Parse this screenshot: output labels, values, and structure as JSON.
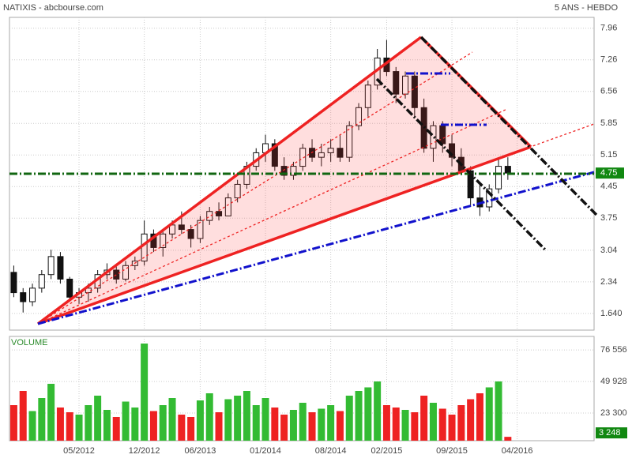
{
  "chart_data": [
    {
      "type": "candlestick",
      "title": "NATIXIS - abcbourse.com",
      "subtitle": "5 ANS - HEBDO",
      "x": [
        0,
        1,
        2,
        3,
        4,
        5,
        6,
        7,
        8,
        9,
        10,
        11,
        12,
        13,
        14,
        15,
        16,
        17,
        18,
        19,
        20,
        21,
        22,
        23,
        24,
        25,
        26,
        27,
        28,
        29,
        30,
        31,
        32,
        33,
        34,
        35,
        36,
        37,
        38,
        39,
        40,
        41,
        42,
        43,
        44,
        45,
        46,
        47,
        48,
        49,
        50,
        51,
        52,
        53
      ],
      "open": [
        2.55,
        2.1,
        1.9,
        2.2,
        2.5,
        2.9,
        2.4,
        2.0,
        2.1,
        2.2,
        2.5,
        2.6,
        2.4,
        2.7,
        2.8,
        3.4,
        3.1,
        3.4,
        3.6,
        3.5,
        3.3,
        3.7,
        3.9,
        3.8,
        4.2,
        4.5,
        4.9,
        5.2,
        5.4,
        4.9,
        4.7,
        4.9,
        5.3,
        5.1,
        5.2,
        5.3,
        5.1,
        5.8,
        6.2,
        6.7,
        7.3,
        7.0,
        6.5,
        6.9,
        6.2,
        5.3,
        5.8,
        5.4,
        5.1,
        4.8,
        4.2,
        4.0,
        4.4,
        4.9
      ],
      "high": [
        2.7,
        2.2,
        2.3,
        2.6,
        3.05,
        3.0,
        2.45,
        2.2,
        2.3,
        2.6,
        2.75,
        2.7,
        2.8,
        2.9,
        3.7,
        3.5,
        3.5,
        3.7,
        3.9,
        3.6,
        3.8,
        4.0,
        4.1,
        4.3,
        4.6,
        5.0,
        5.3,
        5.6,
        5.5,
        5.1,
        5.0,
        5.4,
        5.5,
        5.4,
        5.5,
        5.6,
        5.9,
        6.3,
        6.8,
        7.5,
        7.7,
        7.1,
        7.0,
        7.0,
        6.4,
        5.9,
        5.9,
        5.6,
        5.3,
        4.9,
        4.5,
        4.5,
        5.1,
        5.1
      ],
      "low": [
        2.0,
        1.66,
        1.8,
        2.1,
        2.4,
        2.3,
        1.9,
        1.85,
        1.9,
        2.1,
        2.4,
        2.3,
        2.35,
        2.6,
        2.7,
        3.0,
        2.9,
        3.3,
        3.4,
        3.1,
        3.2,
        3.6,
        3.7,
        3.8,
        4.1,
        4.4,
        4.8,
        5.0,
        4.8,
        4.6,
        4.6,
        4.8,
        5.0,
        4.9,
        5.0,
        5.0,
        5.0,
        5.7,
        6.0,
        6.6,
        6.9,
        6.3,
        6.4,
        6.0,
        5.2,
        5.0,
        5.2,
        4.9,
        4.7,
        4.0,
        3.8,
        3.9,
        4.3,
        4.6
      ],
      "close": [
        2.1,
        1.9,
        2.2,
        2.5,
        2.9,
        2.4,
        2.0,
        2.1,
        2.2,
        2.5,
        2.6,
        2.4,
        2.7,
        2.8,
        3.4,
        3.1,
        3.4,
        3.6,
        3.5,
        3.3,
        3.7,
        3.9,
        3.8,
        4.2,
        4.5,
        4.9,
        5.2,
        5.4,
        4.9,
        4.7,
        4.9,
        5.3,
        5.1,
        5.2,
        5.3,
        5.1,
        5.8,
        6.2,
        6.7,
        7.3,
        7.0,
        6.5,
        6.9,
        6.2,
        5.3,
        5.8,
        5.4,
        5.1,
        4.8,
        4.2,
        4.0,
        4.4,
        4.9,
        4.75
      ],
      "last_value": 4.75,
      "xlim": [
        -0.46,
        62.25
      ],
      "ylim": [
        1.27,
        8.2
      ],
      "yticks": [
        7.96,
        7.26,
        6.56,
        5.85,
        5.15,
        4.45,
        3.75,
        3.04,
        2.34,
        {
          "value": 1.64,
          "label": "1.640"
        }
      ],
      "grid": true
    },
    {
      "type": "bar",
      "title": "VOLUME",
      "up_color": "#33bb33",
      "down_color": "#ee2222",
      "values": [
        30000,
        42000,
        25000,
        36000,
        48000,
        28000,
        24000,
        22000,
        30000,
        38000,
        26000,
        20000,
        33000,
        28000,
        82000,
        25000,
        30000,
        36000,
        22000,
        20000,
        34000,
        40000,
        24000,
        35000,
        38000,
        42000,
        30000,
        36000,
        28000,
        22000,
        26000,
        32000,
        24000,
        27000,
        30000,
        25000,
        38000,
        42000,
        45000,
        50000,
        30000,
        28000,
        26000,
        24000,
        38000,
        32000,
        27000,
        22000,
        30000,
        35000,
        40000,
        45000,
        50000,
        3248
      ],
      "last_value": {
        "value": 3248,
        "label": "3 248"
      },
      "ylim": [
        0,
        88000
      ],
      "yticks": [
        {
          "value": 76556,
          "label": "76 556"
        },
        {
          "value": 49928,
          "label": "49 928"
        },
        {
          "value": 23300,
          "label": "23 300"
        }
      ],
      "xticks": [
        {
          "value": 7,
          "label": "05/2012"
        },
        {
          "value": 14,
          "label": "12/2012"
        },
        {
          "value": 20,
          "label": "06/2013"
        },
        {
          "value": 27,
          "label": "01/2014"
        },
        {
          "value": 34,
          "label": "08/2014"
        },
        {
          "value": 40,
          "label": "02/2015"
        },
        {
          "value": 47,
          "label": "09/2015"
        },
        {
          "value": 54,
          "label": "04/2016"
        }
      ],
      "grid": true
    }
  ]
}
